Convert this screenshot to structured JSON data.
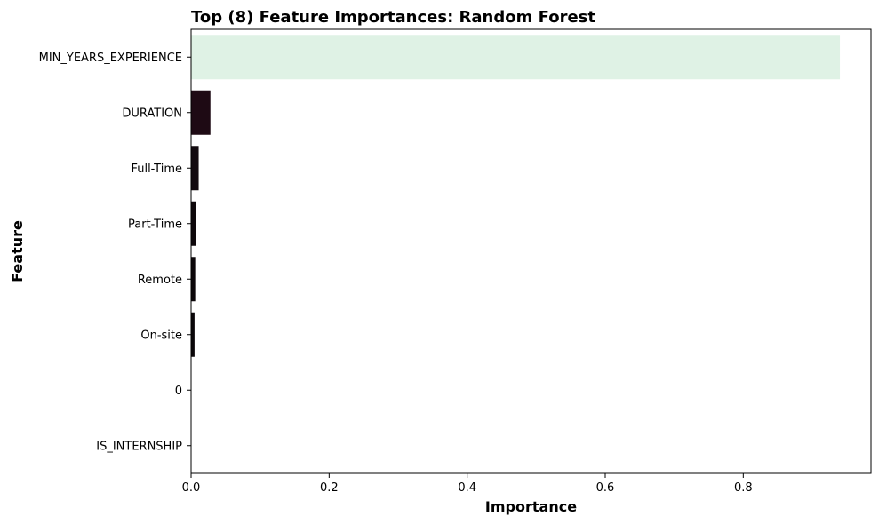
{
  "chart_data": {
    "type": "bar",
    "orientation": "horizontal",
    "title": "Top (8) Feature Importances: Random Forest",
    "xlabel": "Importance",
    "ylabel": "Feature",
    "categories": [
      "MIN_YEARS_EXPERIENCE",
      "DURATION",
      "Full-Time",
      "Part-Time",
      "Remote",
      "On-site",
      "0",
      "IS_INTERNSHIP"
    ],
    "values": [
      0.94,
      0.028,
      0.011,
      0.007,
      0.006,
      0.005,
      0.0,
      0.0
    ],
    "bar_colors": [
      "#dff2e5",
      "#1e0a14",
      "#120a0f",
      "#0e080b",
      "#0c070a",
      "#0a0609",
      "#06040a",
      "#06040a"
    ],
    "xlim": [
      0,
      0.985
    ],
    "xticks": [
      0.0,
      0.2,
      0.4,
      0.6,
      0.8
    ],
    "xtick_labels": [
      "0.0",
      "0.2",
      "0.4",
      "0.6",
      "0.8"
    ],
    "grid": false,
    "legend": "none"
  }
}
